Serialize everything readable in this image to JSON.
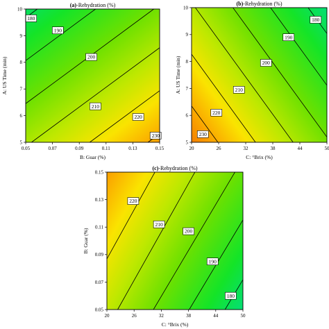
{
  "chart_data": [
    {
      "type": "heatmap",
      "title_prefix": "(a)",
      "title_rest": "-Rehydration  (%)",
      "xlabel": "B: Guar (%)",
      "ylabel": "A: US Time (min)",
      "xlim": [
        0.05,
        0.15
      ],
      "ylim": [
        5,
        10
      ],
      "xticks": [
        "0.05",
        "0.07",
        "0.09",
        "0.11",
        "0.13",
        "0.15"
      ],
      "yticks": [
        "5",
        "6",
        "7",
        "8",
        "9",
        "10"
      ],
      "surface": {
        "v00": 209,
        "v10": 232,
        "v01": 178,
        "v11": 201
      },
      "contours": [
        {
          "value": 180,
          "label": "180",
          "label_x": 0.054,
          "label_y": 9.65
        },
        {
          "value": 190,
          "label": "190",
          "label_x": 0.074,
          "label_y": 9.2
        },
        {
          "value": 200,
          "label": "200",
          "label_x": 0.099,
          "label_y": 8.2
        },
        {
          "value": 210,
          "label": "210",
          "label_x": 0.102,
          "label_y": 6.35
        },
        {
          "value": 220,
          "label": "220",
          "label_x": 0.134,
          "label_y": 5.95
        },
        {
          "value": 230,
          "label": "230",
          "label_x": 0.147,
          "label_y": 5.25
        }
      ]
    },
    {
      "type": "heatmap",
      "title_prefix": "(b)",
      "title_rest": "-Rehydration  (%)",
      "xlabel": "C: °Brix (%)",
      "ylabel": "A: US Time (min)",
      "xlim": [
        20,
        50
      ],
      "ylim": [
        5,
        10
      ],
      "xticks": [
        "20",
        "26",
        "32",
        "38",
        "44",
        "50"
      ],
      "yticks": [
        "5",
        "6",
        "7",
        "8",
        "9",
        "10"
      ],
      "surface": {
        "v00": 237,
        "v10": 201,
        "v01": 211,
        "v11": 175
      },
      "contours": [
        {
          "value": 180,
          "label": "180",
          "label_x": 47.5,
          "label_y": 9.55
        },
        {
          "value": 190,
          "label": "190",
          "label_x": 41.5,
          "label_y": 8.9
        },
        {
          "value": 200,
          "label": "200",
          "label_x": 36.5,
          "label_y": 7.95
        },
        {
          "value": 210,
          "label": "210",
          "label_x": 30.5,
          "label_y": 6.95
        },
        {
          "value": 220,
          "label": "220",
          "label_x": 25.5,
          "label_y": 6.1
        },
        {
          "value": 230,
          "label": "230",
          "label_x": 22.5,
          "label_y": 5.3
        }
      ]
    },
    {
      "type": "heatmap",
      "title_prefix": "(c)",
      "title_rest": "-Rehydration  (%)",
      "xlabel": "C: °Brix (%)",
      "ylabel": "B: Guar (%)",
      "xlim": [
        20,
        50
      ],
      "ylim": [
        0.05,
        0.15
      ],
      "xticks": [
        "20",
        "26",
        "32",
        "38",
        "44",
        "50"
      ],
      "yticks": [
        "0.05",
        "0.07",
        "0.09",
        "0.11",
        "0.13",
        "0.15"
      ],
      "surface": {
        "v00": 213,
        "v10": 175,
        "v01": 232,
        "v11": 198
      },
      "contours": [
        {
          "value": 180,
          "label": "180",
          "label_x": 47.3,
          "label_y": 0.06
        },
        {
          "value": 190,
          "label": "190",
          "label_x": 43.3,
          "label_y": 0.085
        },
        {
          "value": 200,
          "label": "200",
          "label_x": 38.0,
          "label_y": 0.107
        },
        {
          "value": 210,
          "label": "210",
          "label_x": 31.5,
          "label_y": 0.112
        },
        {
          "value": 220,
          "label": "220",
          "label_x": 25.8,
          "label_y": 0.129
        }
      ]
    }
  ]
}
